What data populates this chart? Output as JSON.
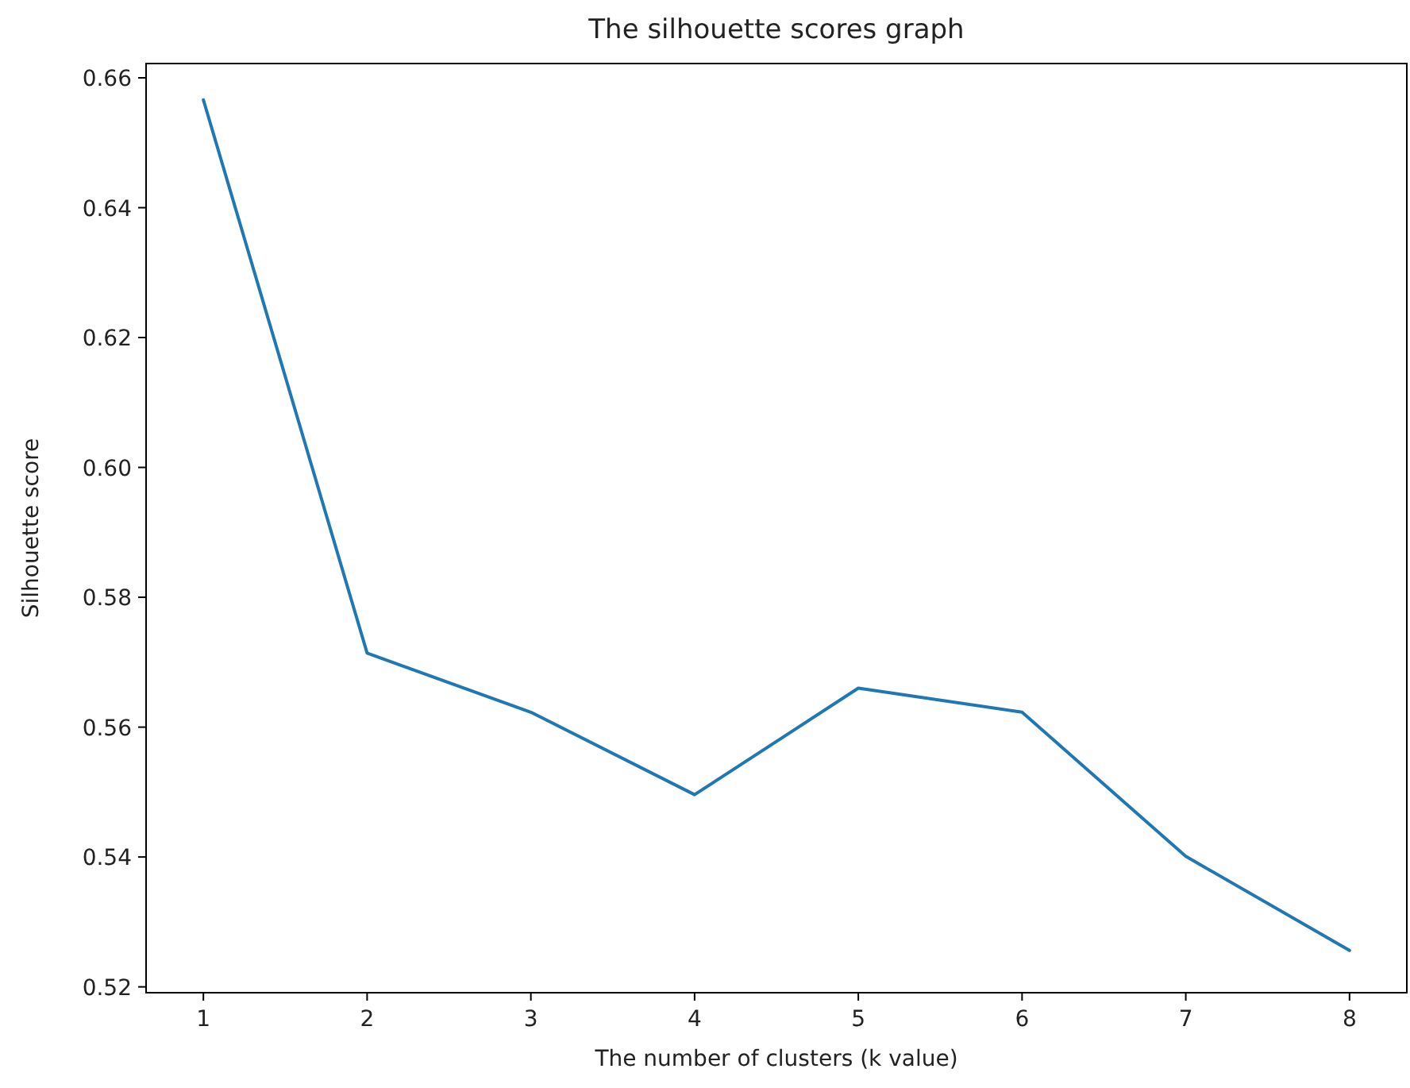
{
  "chart_data": {
    "type": "line",
    "title": "The silhouette scores graph",
    "xlabel": "The number of clusters (k value)",
    "ylabel": "Silhouette score",
    "x": [
      1,
      2,
      3,
      4,
      5,
      6,
      7,
      8
    ],
    "series": [
      {
        "color": "#1f77b4",
        "values": [
          0.6566,
          0.5714,
          0.5623,
          0.5496,
          0.566,
          0.5623,
          0.5401,
          0.5256
        ]
      }
    ],
    "xlim": [
      0.65,
      8.35
    ],
    "xticks": [
      1,
      2,
      3,
      4,
      5,
      6,
      7,
      8
    ],
    "ylim": [
      0.5191,
      0.6622
    ],
    "yticks": [
      {
        "value": 0.52,
        "label": "0.52"
      },
      {
        "value": 0.54,
        "label": "0.54"
      },
      {
        "value": 0.56,
        "label": "0.56"
      },
      {
        "value": 0.58,
        "label": "0.58"
      },
      {
        "value": 0.6,
        "label": "0.60"
      },
      {
        "value": 0.62,
        "label": "0.62"
      },
      {
        "value": 0.64,
        "label": "0.64"
      },
      {
        "value": 0.66,
        "label": "0.66"
      }
    ],
    "grid": false,
    "marker": "none",
    "line_style": "solid"
  }
}
